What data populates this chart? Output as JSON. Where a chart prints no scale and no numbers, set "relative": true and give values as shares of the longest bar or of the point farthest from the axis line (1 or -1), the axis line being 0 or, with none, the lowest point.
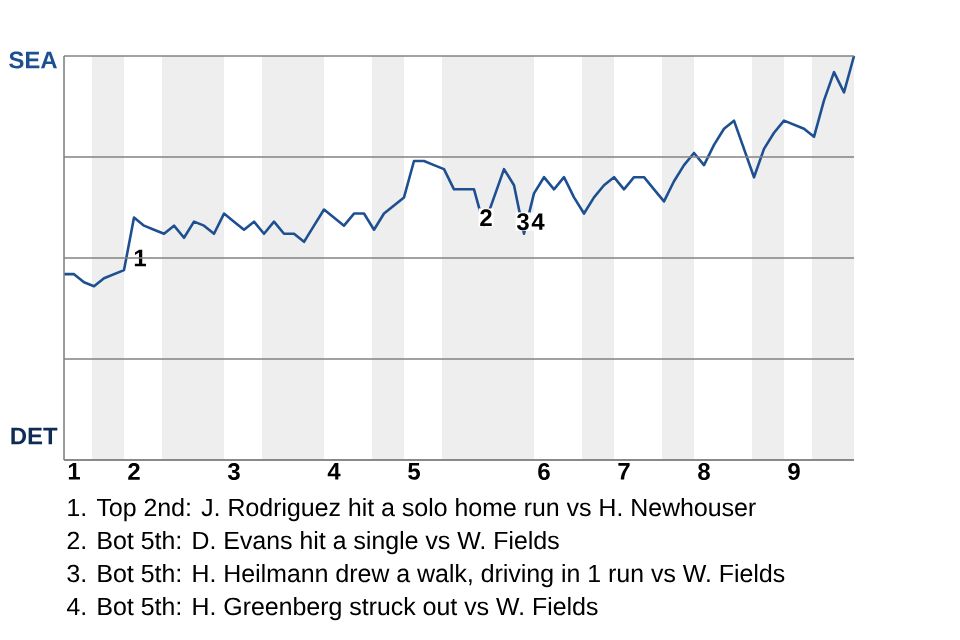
{
  "chart_data": {
    "type": "line",
    "relative": true,
    "categories": [
      null,
      "1",
      null,
      null,
      null,
      null,
      null,
      "2",
      null,
      null,
      null,
      null,
      null,
      null,
      null,
      null,
      null,
      "3",
      null,
      null,
      null,
      null,
      null,
      null,
      null,
      null,
      null,
      "4",
      null,
      null,
      null,
      null,
      null,
      null,
      null,
      "5",
      null,
      null,
      null,
      null,
      null,
      null,
      null,
      null,
      null,
      null,
      null,
      null,
      "6",
      null,
      null,
      null,
      null,
      null,
      null,
      null,
      "7",
      null,
      null,
      null,
      null,
      null,
      null,
      null,
      "8",
      null,
      null,
      null,
      null,
      null,
      null,
      null,
      null,
      "9",
      null,
      null,
      null,
      null,
      null,
      null
    ],
    "series": [
      {
        "color": "#1d4f91",
        "values": [
          0.46,
          0.46,
          0.44,
          0.43,
          0.45,
          0.46,
          0.47,
          0.6,
          0.58,
          0.57,
          0.56,
          0.58,
          0.55,
          0.59,
          0.58,
          0.56,
          0.61,
          0.59,
          0.57,
          0.59,
          0.56,
          0.59,
          0.56,
          0.56,
          0.54,
          0.58,
          0.62,
          0.6,
          0.58,
          0.61,
          0.61,
          0.57,
          0.61,
          0.63,
          0.65,
          0.74,
          0.74,
          0.73,
          0.72,
          0.67,
          0.67,
          0.67,
          0.58,
          0.65,
          0.72,
          0.68,
          0.56,
          0.66,
          0.7,
          0.67,
          0.7,
          0.65,
          0.61,
          0.65,
          0.68,
          0.7,
          0.67,
          0.7,
          0.7,
          0.67,
          0.64,
          0.69,
          0.73,
          0.76,
          0.73,
          0.78,
          0.82,
          0.84,
          0.77,
          0.7,
          0.77,
          0.81,
          0.84,
          0.83,
          0.82,
          0.8,
          0.89,
          0.96,
          0.91,
          1.0
        ]
      }
    ],
    "grid": "y",
    "annotations": [
      "SEA",
      "DET",
      "1",
      "2",
      "3",
      "4",
      "1. Top 2nd: J. Rodriguez hit a solo home run vs H. Newhouser",
      "2. Bot 5th: D. Evans hit a single vs W. Fields",
      "3. Bot 5th: H. Heilmann drew a walk, driving in 1 run vs W. Fields",
      "4. Bot 5th: H. Greenberg struck out vs W. Fields"
    ],
    "marker": "none",
    "line_style": "solid"
  }
}
